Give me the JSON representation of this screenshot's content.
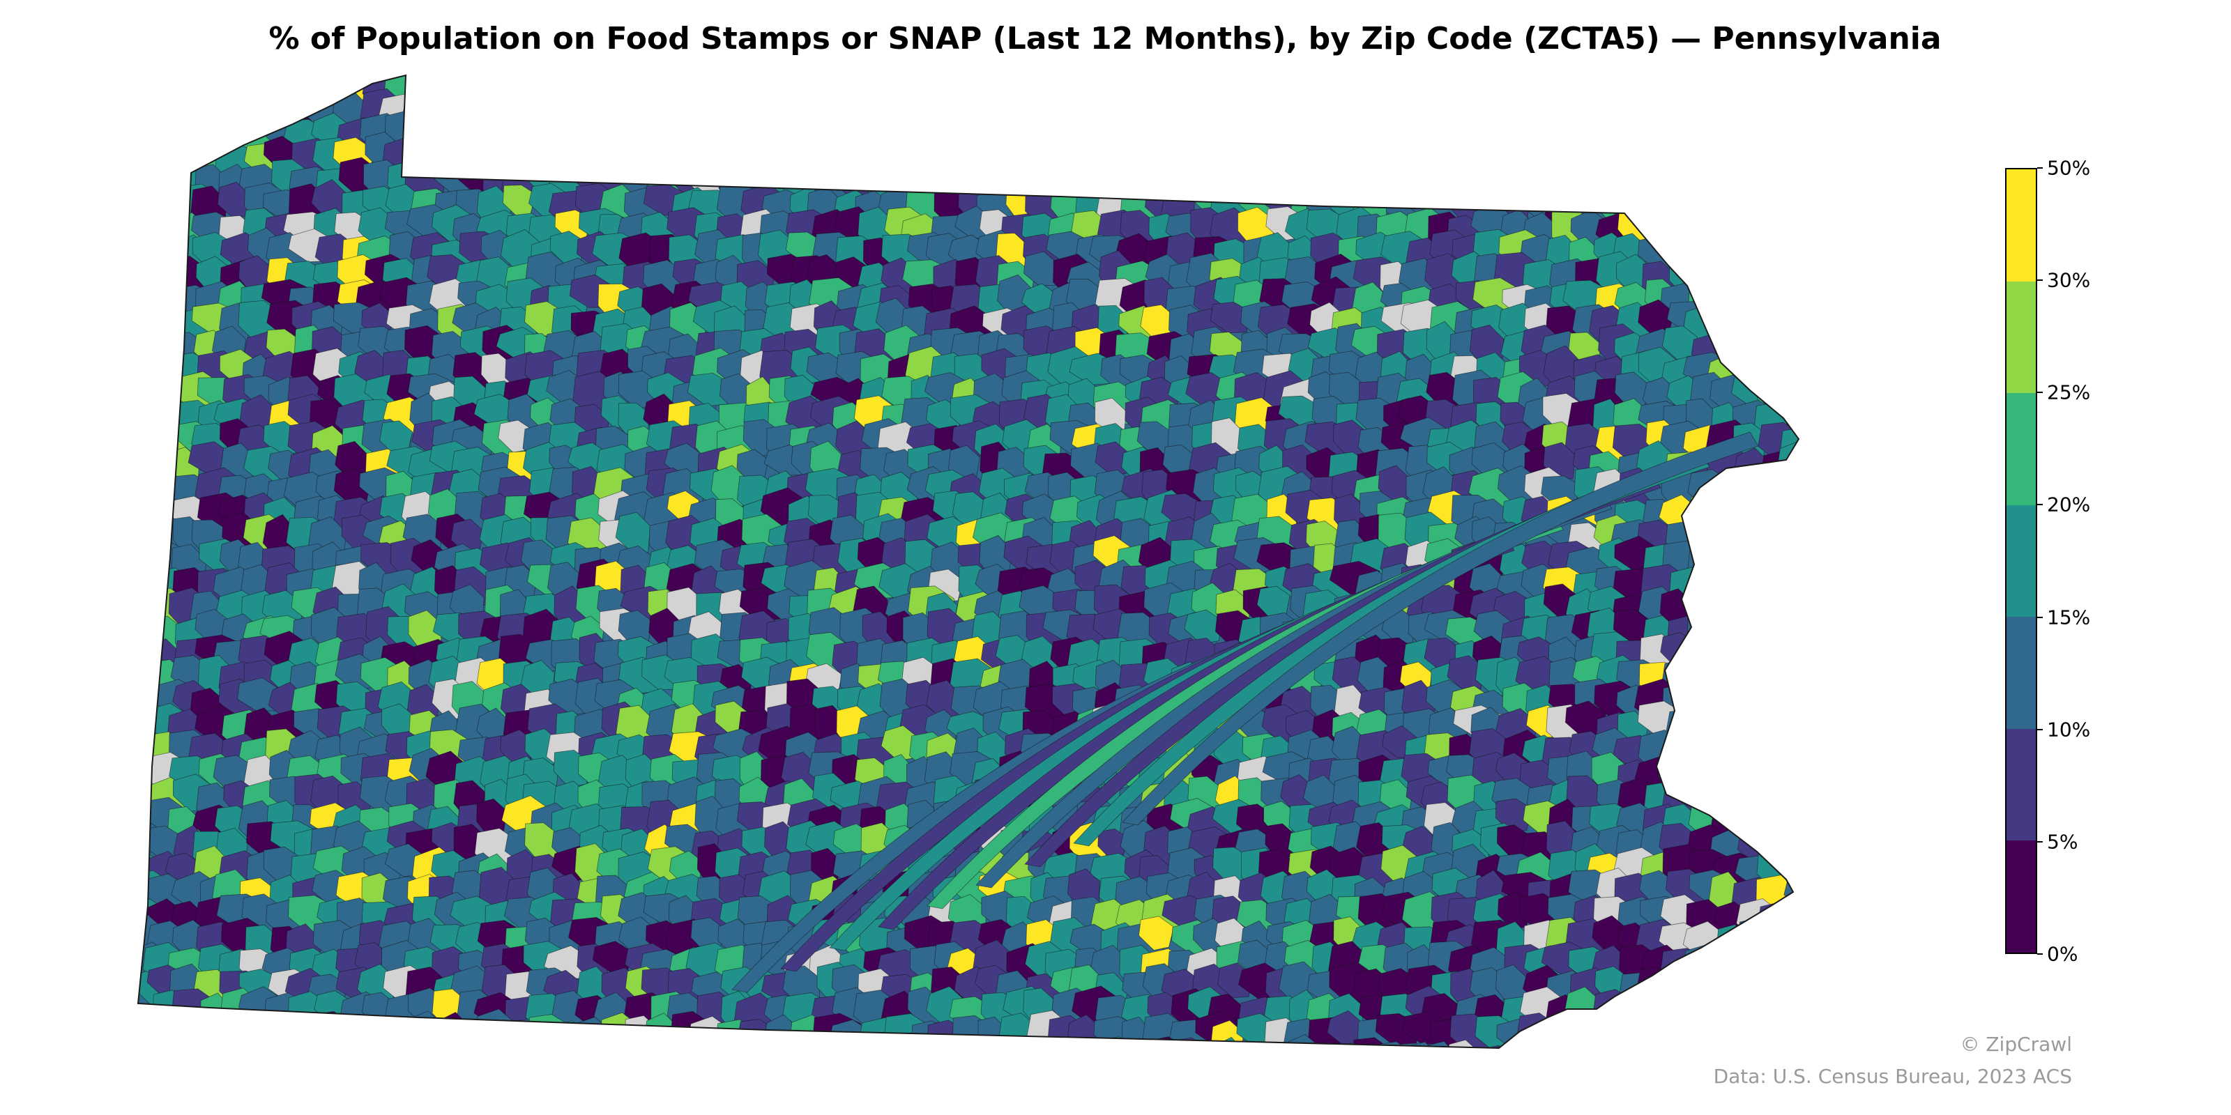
{
  "title": "% of Population on Food Stamps or SNAP (Last 12 Months), by Zip Code (ZCTA5) — Pennsylvania",
  "legend": {
    "bins": [
      {
        "label": "50%",
        "color": "#fde725"
      },
      {
        "label": "30%",
        "color": "#8fd744"
      },
      {
        "label": "25%",
        "color": "#35b779"
      },
      {
        "label": "20%",
        "color": "#21918c"
      },
      {
        "label": "15%",
        "color": "#31688e"
      },
      {
        "label": "10%",
        "color": "#443983"
      },
      {
        "label": "5%",
        "color": "#440154"
      }
    ],
    "bottom_label": "0%",
    "no_data_color": "#d3d3d3"
  },
  "credits": {
    "watermark": "© ZipCrawl",
    "source": "Data: U.S. Census Bureau, 2023 ACS"
  }
}
